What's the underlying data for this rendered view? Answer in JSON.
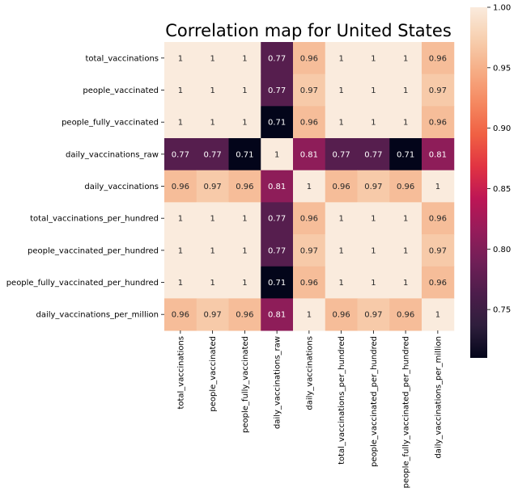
{
  "chart_data": {
    "type": "heatmap",
    "title": "Correlation map for United States",
    "row_labels": [
      "total_vaccinations",
      "people_vaccinated",
      "people_fully_vaccinated",
      "daily_vaccinations_raw",
      "daily_vaccinations",
      "total_vaccinations_per_hundred",
      "people_vaccinated_per_hundred",
      "people_fully_vaccinated_per_hundred",
      "daily_vaccinations_per_million"
    ],
    "col_labels": [
      "total_vaccinations",
      "people_vaccinated",
      "people_fully_vaccinated",
      "daily_vaccinations_raw",
      "daily_vaccinations",
      "total_vaccinations_per_hundred",
      "people_vaccinated_per_hundred",
      "people_fully_vaccinated_per_hundred",
      "daily_vaccinations_per_million"
    ],
    "values": [
      [
        1,
        1,
        1,
        0.77,
        0.96,
        1,
        1,
        1,
        0.96
      ],
      [
        1,
        1,
        1,
        0.77,
        0.97,
        1,
        1,
        1,
        0.97
      ],
      [
        1,
        1,
        1,
        0.71,
        0.96,
        1,
        1,
        1,
        0.96
      ],
      [
        0.77,
        0.77,
        0.71,
        1,
        0.81,
        0.77,
        0.77,
        0.71,
        0.81
      ],
      [
        0.96,
        0.97,
        0.96,
        0.81,
        1,
        0.96,
        0.97,
        0.96,
        1
      ],
      [
        1,
        1,
        1,
        0.77,
        0.96,
        1,
        1,
        1,
        0.96
      ],
      [
        1,
        1,
        1,
        0.77,
        0.97,
        1,
        1,
        1,
        0.97
      ],
      [
        1,
        1,
        1,
        0.71,
        0.96,
        1,
        1,
        1,
        0.96
      ],
      [
        0.96,
        0.97,
        0.96,
        0.81,
        1,
        0.96,
        0.97,
        0.96,
        1
      ]
    ],
    "colorbar": {
      "min": 0.71,
      "max": 1.0,
      "ticks": [
        0.75,
        0.8,
        0.85,
        0.9,
        0.95,
        1.0
      ],
      "tick_labels": [
        "0.75",
        "0.80",
        "0.85",
        "0.90",
        "0.95",
        "1.00"
      ],
      "colormap": "rocket",
      "stops": [
        "#03051a",
        "#2e1e3c",
        "#4c1d4b",
        "#701f57",
        "#961c5a",
        "#bd1655",
        "#e13342",
        "#f06043",
        "#f58860",
        "#f6ad85",
        "#f7cfaf",
        "#faebdd"
      ]
    },
    "annotated": true
  }
}
